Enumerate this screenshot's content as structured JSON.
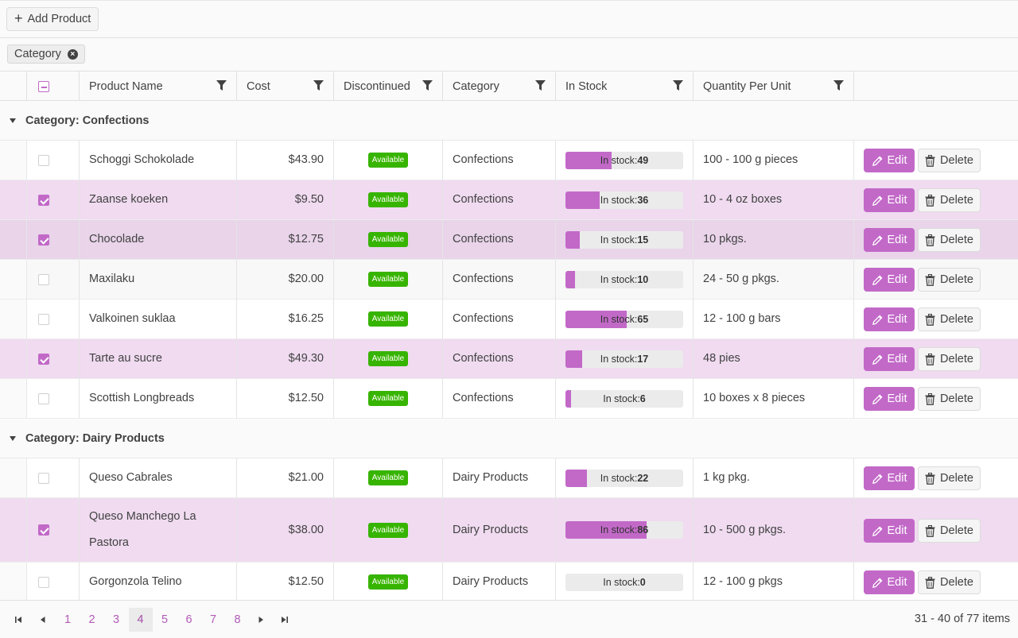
{
  "toolbar": {
    "add_label": "Add Product"
  },
  "group_panel": {
    "chip_label": "Category"
  },
  "columns": {
    "name": "Product Name",
    "cost": "Cost",
    "discontinued": "Discontinued",
    "category": "Category",
    "stock": "In Stock",
    "qty": "Quantity Per Unit"
  },
  "groups": [
    {
      "label": "Category: Confections",
      "rows": [
        {
          "name": "Schoggi Schokolade",
          "cost": "$43.90",
          "status": "Available",
          "category": "Confections",
          "stock_label": "In stock:",
          "stock": "49",
          "stock_fill": 0.39,
          "qty": "100 - 100 g pieces",
          "selected": false
        },
        {
          "name": "Zaanse koeken",
          "cost": "$9.50",
          "status": "Available",
          "category": "Confections",
          "stock_label": "In stock:",
          "stock": "36",
          "stock_fill": 0.29,
          "qty": "10 - 4 oz boxes",
          "selected": true
        },
        {
          "name": "Chocolade",
          "cost": "$12.75",
          "status": "Available",
          "category": "Confections",
          "stock_label": "In stock:",
          "stock": "15",
          "stock_fill": 0.12,
          "qty": "10 pkgs.",
          "selected": true
        },
        {
          "name": "Maxilaku",
          "cost": "$20.00",
          "status": "Available",
          "category": "Confections",
          "stock_label": "In stock:",
          "stock": "10",
          "stock_fill": 0.08,
          "qty": "24 - 50 g pkgs.",
          "selected": false
        },
        {
          "name": "Valkoinen suklaa",
          "cost": "$16.25",
          "status": "Available",
          "category": "Confections",
          "stock_label": "In stock:",
          "stock": "65",
          "stock_fill": 0.52,
          "qty": "12 - 100 g bars",
          "selected": false
        },
        {
          "name": "Tarte au sucre",
          "cost": "$49.30",
          "status": "Available",
          "category": "Confections",
          "stock_label": "In stock:",
          "stock": "17",
          "stock_fill": 0.14,
          "qty": "48 pies",
          "selected": true
        },
        {
          "name": "Scottish Longbreads",
          "cost": "$12.50",
          "status": "Available",
          "category": "Confections",
          "stock_label": "In stock:",
          "stock": "6",
          "stock_fill": 0.05,
          "qty": "10 boxes x 8 pieces",
          "selected": false
        }
      ]
    },
    {
      "label": "Category: Dairy Products",
      "rows": [
        {
          "name": "Queso Cabrales",
          "cost": "$21.00",
          "status": "Available",
          "category": "Dairy Products",
          "stock_label": "In stock:",
          "stock": "22",
          "stock_fill": 0.18,
          "qty": "1 kg pkg.",
          "selected": false
        },
        {
          "name": "Queso Manchego La Pastora",
          "cost": "$38.00",
          "status": "Available",
          "category": "Dairy Products",
          "stock_label": "In stock:",
          "stock": "86",
          "stock_fill": 0.69,
          "qty": "10 - 500 g pkgs.",
          "selected": true
        },
        {
          "name": "Gorgonzola Telino",
          "cost": "$12.50",
          "status": "Available",
          "category": "Dairy Products",
          "stock_label": "In stock:",
          "stock": "0",
          "stock_fill": 0,
          "qty": "12 - 100 g pkgs",
          "selected": false
        }
      ]
    }
  ],
  "actions": {
    "edit": "Edit",
    "delete": "Delete"
  },
  "pager": {
    "pages": [
      "1",
      "2",
      "3",
      "4",
      "5",
      "6",
      "7",
      "8"
    ],
    "current": "4",
    "info": "31 - 40 of 77 items"
  },
  "colors": {
    "accent": "#c269c8",
    "available": "#37b400",
    "selected_row": "#e9d4ea"
  },
  "icons": [
    "plus-icon",
    "close-circle-icon",
    "filter-icon",
    "caret-down-icon",
    "pencil-icon",
    "trash-icon",
    "first-page-icon",
    "prev-page-icon",
    "next-page-icon",
    "last-page-icon"
  ]
}
